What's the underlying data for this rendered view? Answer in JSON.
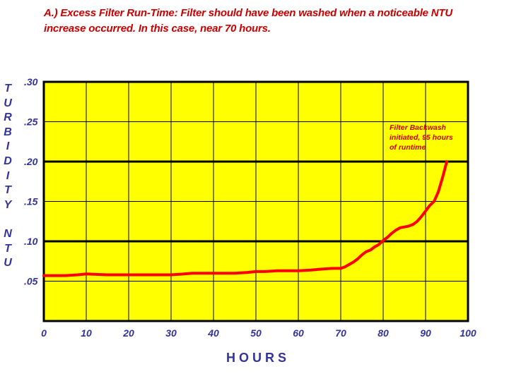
{
  "header": {
    "line1": "A.)  Excess Filter Run-Time:  Filter should have been washed when a noticeable NTU",
    "line2": "increase occurred.  In this case, near 70 hours."
  },
  "colors": {
    "plot_bg": "#ffff00",
    "line": "#ff0000",
    "grid": "#000000",
    "text": "#33339a",
    "title": "#cc0000"
  },
  "chart_data": {
    "type": "line",
    "title": "A.)  Excess Filter Run-Time:  Filter should have been washed when a noticeable NTU increase occurred.  In this case, near 70 hours.",
    "xlabel": "HOURS",
    "ylabel_letters": [
      "T",
      "U",
      "R",
      "B",
      "I",
      "D",
      "I",
      "T",
      "Y",
      "",
      "N",
      "T",
      "U"
    ],
    "xlim": [
      0,
      100
    ],
    "ylim": [
      0,
      0.3
    ],
    "x_ticks": [
      "0",
      "10",
      "20",
      "30",
      "40",
      "50",
      "60",
      "70",
      "80",
      "90",
      "100"
    ],
    "y_ticks": [
      ".05",
      ".10",
      ".15",
      ".20",
      ".25",
      ".30"
    ],
    "y_tick_values": [
      0.05,
      0.1,
      0.15,
      0.2,
      0.25,
      0.3
    ],
    "grid": true,
    "annotation": {
      "lines": [
        "Filter Backwash",
        "initiated, 95 hours",
        "of runtime"
      ],
      "x": 95,
      "y": 0.215
    },
    "series": [
      {
        "x": [
          0,
          5,
          8,
          10,
          15,
          20,
          25,
          30,
          33,
          35,
          40,
          45,
          48,
          50,
          52,
          55,
          60,
          63,
          65,
          68,
          70,
          71,
          72,
          73,
          74,
          75,
          76,
          77,
          78,
          79,
          80,
          81,
          82,
          83,
          84,
          85,
          86,
          87,
          88,
          89,
          90,
          91,
          92,
          93,
          94,
          95
        ],
        "values": [
          0.057,
          0.057,
          0.058,
          0.059,
          0.058,
          0.058,
          0.058,
          0.058,
          0.059,
          0.06,
          0.06,
          0.06,
          0.061,
          0.062,
          0.062,
          0.063,
          0.063,
          0.064,
          0.065,
          0.066,
          0.066,
          0.068,
          0.071,
          0.074,
          0.078,
          0.083,
          0.087,
          0.089,
          0.093,
          0.096,
          0.101,
          0.105,
          0.11,
          0.114,
          0.117,
          0.118,
          0.119,
          0.121,
          0.125,
          0.131,
          0.138,
          0.145,
          0.15,
          0.162,
          0.18,
          0.2
        ]
      }
    ]
  }
}
